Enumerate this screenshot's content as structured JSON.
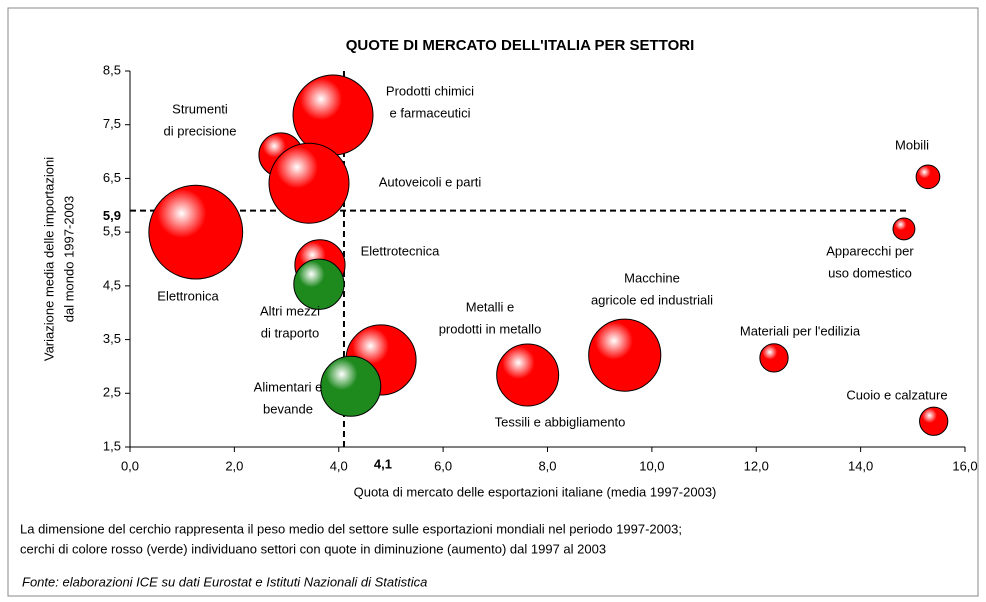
{
  "chart_data": {
    "type": "bubble",
    "title": "QUOTE DI MERCATO DELL'ITALIA PER SETTORI",
    "xlabel": "Quota di mercato delle esportazioni italiane (media 1997-2003)",
    "ylabel": [
      "Variazione media delle importazioni",
      "dal mondo 1997-2003"
    ],
    "xlim": [
      0,
      16
    ],
    "ylim": [
      1.5,
      8.5
    ],
    "xticks": [
      {
        "value": 0,
        "label": "0,0"
      },
      {
        "value": 2,
        "label": "2,0"
      },
      {
        "value": 4,
        "label": "4,0"
      },
      {
        "value": 6,
        "label": "6,0"
      },
      {
        "value": 8,
        "label": "8,0"
      },
      {
        "value": 10,
        "label": "10,0"
      },
      {
        "value": 12,
        "label": "12,0"
      },
      {
        "value": 14,
        "label": "14,0"
      },
      {
        "value": 16,
        "label": "16,0"
      }
    ],
    "yticks": [
      {
        "value": 1.5,
        "label": "1,5"
      },
      {
        "value": 2.5,
        "label": "2,5"
      },
      {
        "value": 3.5,
        "label": "3,5"
      },
      {
        "value": 4.5,
        "label": "4,5"
      },
      {
        "value": 5.5,
        "label": "5,5"
      },
      {
        "value": 6.5,
        "label": "6,5"
      },
      {
        "value": 7.5,
        "label": "7,5"
      },
      {
        "value": 8.5,
        "label": "8,5"
      }
    ],
    "xref": {
      "value": 4.1,
      "label": "4,1"
    },
    "yref": {
      "value": 5.9,
      "label": "5,9"
    },
    "labels": [
      [
        "Elettronica"
      ],
      [
        "Strumenti",
        "di precisione"
      ],
      [
        "Prodotti chimici",
        "e farmaceutici"
      ],
      [
        "Autoveicoli e parti"
      ],
      [
        "Elettrotecnica"
      ],
      [
        "Altri mezzi",
        "di traporto"
      ],
      [
        "Metalli e",
        "prodotti in metallo"
      ],
      [
        "Alimentari e",
        "bevande"
      ],
      [
        "Tessili e abbigliamento"
      ],
      [
        "Macchine",
        "agricole ed industriali"
      ],
      [
        "Materiali per l'edilizia"
      ],
      [
        "Mobili"
      ],
      [
        "Apparecchi per",
        "uso domestico"
      ],
      [
        "Cuoio e calzature"
      ]
    ],
    "x": [
      1.26,
      2.89,
      3.89,
      3.43,
      3.64,
      3.62,
      4.81,
      4.23,
      7.62,
      9.48,
      12.34,
      15.29,
      14.83,
      15.4
    ],
    "y": [
      5.5,
      6.94,
      7.68,
      6.41,
      4.89,
      4.53,
      3.12,
      2.63,
      2.84,
      3.21,
      3.16,
      6.53,
      5.56,
      1.98
    ],
    "sizes": [
      22,
      4.8,
      16,
      16,
      6.3,
      6.3,
      12.3,
      9,
      9.6,
      13,
      2,
      1.4,
      1.2,
      2
    ],
    "colors": [
      "#ff0000",
      "#ff0000",
      "#ff0000",
      "#ff0000",
      "#ff0000",
      "#1e8a1e",
      "#ff0000",
      "#1e8a1e",
      "#ff0000",
      "#ff0000",
      "#ff0000",
      "#ff0000",
      "#ff0000",
      "#ff0000"
    ],
    "note": [
      "La dimensione del cerchio rappresenta il peso medio del settore sulle esportazioni mondiali nel periodo 1997-2003;",
      "cerchi di colore rosso (verde) individuano settori con quote in diminuzione (aumento) dal 1997 al 2003"
    ],
    "source": "Fonte:  elaborazioni ICE su dati Eurostat e Istituti Nazionali di Statistica"
  }
}
